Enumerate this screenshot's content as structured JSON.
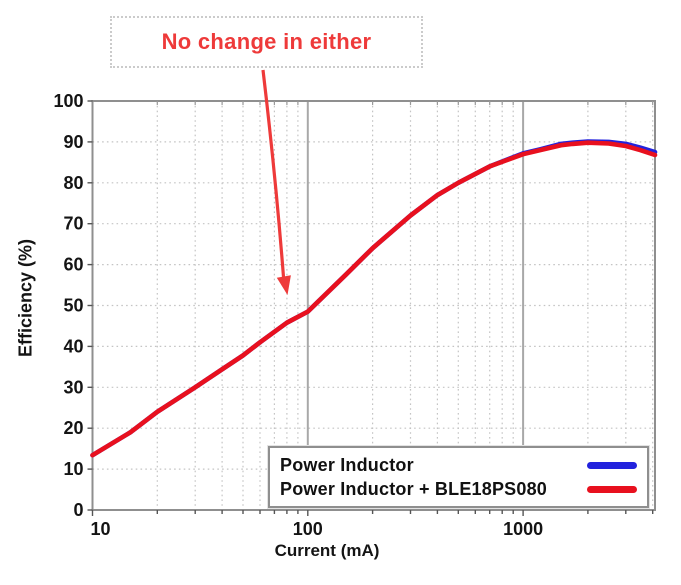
{
  "annotation": {
    "text": "No change in either",
    "color": "#ee3a3a"
  },
  "chart_data": {
    "type": "line",
    "title": "",
    "xlabel": "Current (mA)",
    "ylabel": "Efficiency (%)",
    "x_scale": "log",
    "xlim": [
      10,
      4100
    ],
    "ylim": [
      0,
      100
    ],
    "x_ticks": [
      10,
      100,
      1000
    ],
    "x_tick_labels": [
      "10",
      "100",
      "1000"
    ],
    "y_ticks": [
      0,
      10,
      20,
      30,
      40,
      50,
      60,
      70,
      80,
      90,
      100
    ],
    "grid": true,
    "legend_position": "inside-bottom-right",
    "x": [
      10,
      15,
      20,
      30,
      40,
      50,
      60,
      80,
      100,
      150,
      200,
      300,
      400,
      500,
      700,
      1000,
      1200,
      1500,
      1700,
      2000,
      2500,
      3000,
      3500,
      4100
    ],
    "series": [
      {
        "name": "Power Inductor",
        "color": "#2222dd",
        "values": [
          13.4,
          19,
          24,
          30,
          34.4,
          37.8,
          41,
          45.8,
          48.5,
          57.5,
          64,
          72,
          77,
          80,
          84,
          87.2,
          88.2,
          89.5,
          89.8,
          90.1,
          90.0,
          89.5,
          88.6,
          87.5
        ]
      },
      {
        "name": "Power Inductor + BLE18PS080",
        "color": "#e8101e",
        "values": [
          13.4,
          19,
          24,
          30,
          34.4,
          37.8,
          41,
          45.8,
          48.5,
          57.5,
          64,
          72,
          77,
          80,
          84,
          87.0,
          88.0,
          89.2,
          89.5,
          89.8,
          89.6,
          89.0,
          88.0,
          86.8
        ]
      }
    ]
  }
}
